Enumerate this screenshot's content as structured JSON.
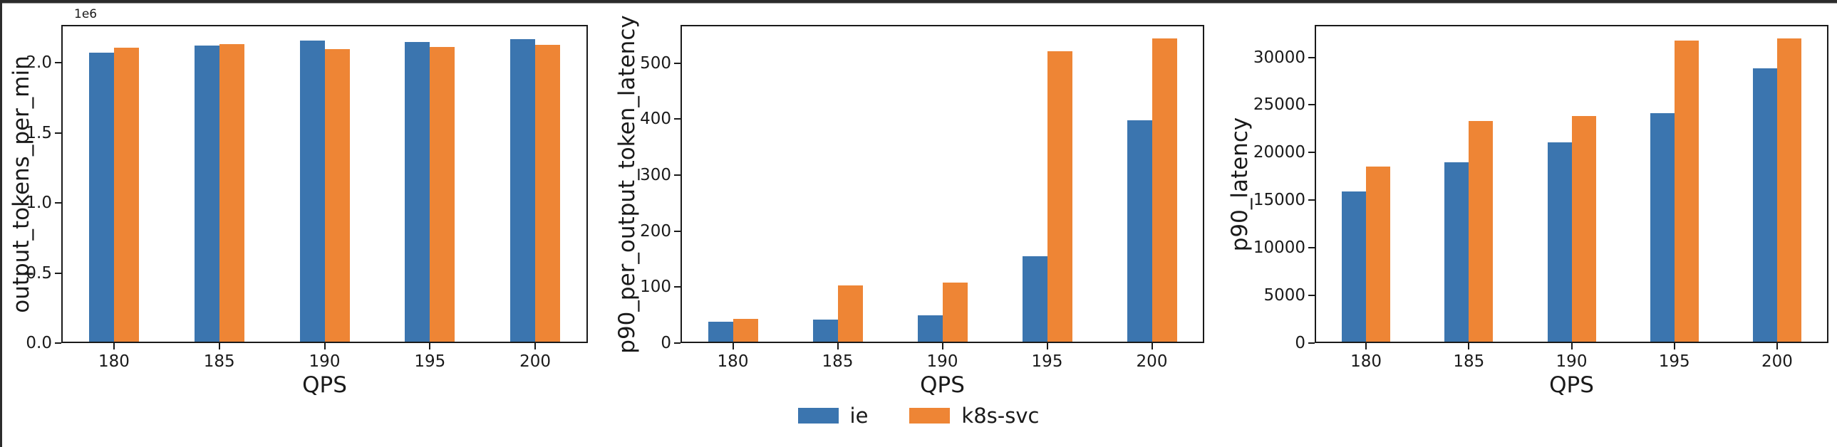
{
  "figure": {
    "background": "#ffffff",
    "frame_color": "#2c2c2c",
    "accent_blue": "#3b75af",
    "accent_orange": "#ee8535"
  },
  "legend": {
    "items": [
      {
        "label": "ie",
        "color": "#3b75af"
      },
      {
        "label": "k8s-svc",
        "color": "#ee8535"
      }
    ]
  },
  "chart_data": [
    {
      "type": "bar",
      "title": "",
      "xlabel": "QPS",
      "ylabel": "output_tokens_per_min",
      "offset_text": "1e6",
      "grid": false,
      "legend_position": "bottom-center-of-figure",
      "categories": [
        "180",
        "185",
        "190",
        "195",
        "200"
      ],
      "series": [
        {
          "name": "ie",
          "color": "#3b75af",
          "values": [
            2060000,
            2115000,
            2150000,
            2140000,
            2160000
          ]
        },
        {
          "name": "k8s-svc",
          "color": "#ee8535",
          "values": [
            2098000,
            2121000,
            2086000,
            2101000,
            2119000
          ]
        }
      ],
      "ylim": [
        0,
        2270000
      ],
      "yticks": [
        0,
        500000,
        1000000,
        1500000,
        2000000
      ],
      "ytick_labels": [
        "0.0",
        "0.5",
        "1.0",
        "1.5",
        "2.0"
      ]
    },
    {
      "type": "bar",
      "title": "",
      "xlabel": "QPS",
      "ylabel": "p90_per_output_token_latency",
      "offset_text": "",
      "grid": false,
      "legend_position": "bottom-center-of-figure",
      "categories": [
        "180",
        "185",
        "190",
        "195",
        "200"
      ],
      "series": [
        {
          "name": "ie",
          "color": "#3b75af",
          "values": [
            35,
            40,
            47,
            152,
            395
          ]
        },
        {
          "name": "k8s-svc",
          "color": "#ee8535",
          "values": [
            41,
            101,
            105,
            519,
            541
          ]
        }
      ],
      "ylim": [
        0,
        568
      ],
      "yticks": [
        0,
        100,
        200,
        300,
        400,
        500
      ],
      "ytick_labels": [
        "0",
        "100",
        "200",
        "300",
        "400",
        "500"
      ]
    },
    {
      "type": "bar",
      "title": "",
      "xlabel": "QPS",
      "ylabel": "p90_latency",
      "offset_text": "",
      "grid": false,
      "legend_position": "bottom-center-of-figure",
      "categories": [
        "180",
        "185",
        "190",
        "195",
        "200"
      ],
      "series": [
        {
          "name": "ie",
          "color": "#3b75af",
          "values": [
            15750,
            18800,
            20900,
            24000,
            28700
          ]
        },
        {
          "name": "k8s-svc",
          "color": "#ee8535",
          "values": [
            18400,
            23200,
            23700,
            31600,
            31800
          ]
        }
      ],
      "ylim": [
        0,
        33400
      ],
      "yticks": [
        0,
        5000,
        10000,
        15000,
        20000,
        25000,
        30000
      ],
      "ytick_labels": [
        "0",
        "5000",
        "10000",
        "15000",
        "20000",
        "25000",
        "30000"
      ]
    }
  ]
}
